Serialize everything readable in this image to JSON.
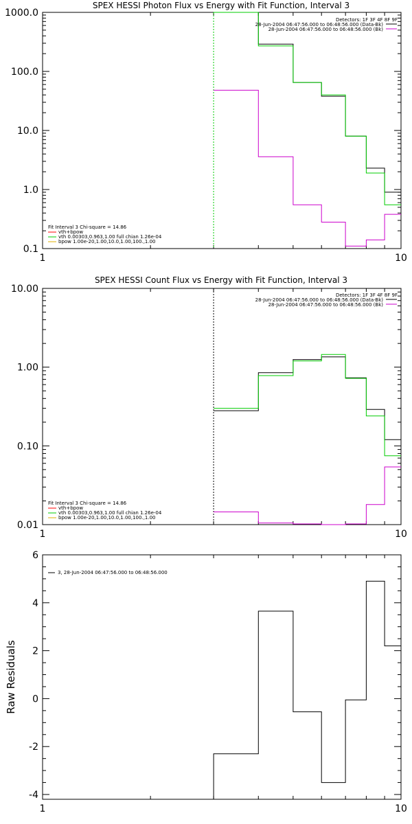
{
  "colors": {
    "data": "#000000",
    "background": "#cc00cc",
    "vth": "#00cc00",
    "fit_total": "#ff0000",
    "bpow": "#e0b000"
  },
  "chart_data": [
    {
      "type": "line",
      "title": "SPEX HESSI Photon Flux vs Energy with Fit Function, Interval 3",
      "xlabel": "",
      "ylabel": "",
      "xlim": [
        1,
        10
      ],
      "ylim": [
        0.1,
        1000
      ],
      "xscale": "log",
      "yscale": "log",
      "x_ticklabels": [
        "1",
        "10"
      ],
      "y_ticklabels": [
        "0.1",
        "1.0",
        "10.0",
        "100.0",
        "1000.0"
      ],
      "vline": 3,
      "legend_right": {
        "header": "Detectors: 1F 3F 4F 8F 9F",
        "entries": [
          "28-Jun-2004 06:47:56.000 to 06:48:56.000 (Data-Bk)",
          "28-Jun-2004 06:47:56.000 to 06:48:56.000 (Bk)"
        ]
      },
      "legend_left": {
        "header": "Fit Interval 3    Chi-square = 14.86",
        "entries": [
          "vth+bpow",
          "vth 0.00303,0.963,1.00   full chian 1.26e-04",
          "bpow 1.00e-20,1.00,10.0,1.00,100.,1.00"
        ]
      },
      "edges": [
        3,
        4,
        5,
        6,
        7,
        8,
        9,
        10
      ],
      "series": [
        {
          "name": "28-Jun-2004 06:47:56.000 to 06:48:56.000 (Data-Bk)",
          "values": [
            1000,
            290,
            65,
            38,
            8,
            2.3,
            0.9
          ]
        },
        {
          "name": "vth 0.00303,0.963,1.00   full chian 1.26e-04",
          "values": [
            1000,
            270,
            65,
            40,
            8,
            1.9,
            0.55
          ]
        },
        {
          "name": "28-Jun-2004 06:47:56.000 to 06:48:56.000 (Bk)",
          "values": [
            48,
            3.6,
            0.55,
            0.28,
            0.11,
            0.14,
            0.38
          ]
        }
      ]
    },
    {
      "type": "line",
      "title": "SPEX HESSI Count Flux vs Energy with Fit Function, Interval 3",
      "xlabel": "",
      "ylabel": "",
      "xlim": [
        1,
        10
      ],
      "ylim": [
        0.01,
        10
      ],
      "xscale": "log",
      "yscale": "log",
      "x_ticklabels": [
        "1",
        "10"
      ],
      "y_ticklabels": [
        "0.01",
        "0.10",
        "1.00",
        "10.00"
      ],
      "vline": 3,
      "legend_right": {
        "header": "Detectors: 1F 3F 4F 8F 9F",
        "entries": [
          "28-Jun-2004 06:47:56.000 to 06:48:56.000 (Data-Bk)",
          "28-Jun-2004 06:47:56.000 to 06:48:56.000 (Bk)"
        ]
      },
      "legend_left": {
        "header": "Fit Interval 3    Chi-square = 14.86",
        "entries": [
          "vth+bpow",
          "vth 0.00303,0.963,1.00   full chian 1.26e-04",
          "bpow 1.00e-20,1.00,10.0,1.00,100.,1.00"
        ]
      },
      "edges": [
        3,
        4,
        5,
        6,
        7,
        8,
        9,
        10
      ],
      "series": [
        {
          "name": "28-Jun-2004 06:47:56.000 to 06:48:56.000 (Data-Bk)",
          "values": [
            0.28,
            0.85,
            1.25,
            1.35,
            0.73,
            0.29,
            0.12
          ]
        },
        {
          "name": "vth 0.00303,0.963,1.00   full chian 1.26e-04",
          "values": [
            0.3,
            0.78,
            1.2,
            1.45,
            0.72,
            0.24,
            0.075
          ]
        },
        {
          "name": "28-Jun-2004 06:47:56.000 to 06:48:56.000 (Bk)",
          "values": [
            0.0145,
            0.0105,
            0.0102,
            0.0096,
            0.0102,
            0.018,
            0.054
          ]
        }
      ]
    },
    {
      "type": "line",
      "title": "",
      "xlabel": "",
      "ylabel": "Raw Residuals",
      "xlim": [
        1,
        10
      ],
      "ylim": [
        -4.2,
        6
      ],
      "xscale": "log",
      "yscale": "linear",
      "x_ticklabels": [
        "1",
        "10"
      ],
      "y_ticks": [
        -4,
        -2,
        0,
        2,
        4,
        6
      ],
      "y_ticklabels": [
        "-4",
        "-2",
        "0",
        "2",
        "4",
        "6"
      ],
      "legend": "3, 28-Jun-2004 06:47:56.000 to 06:48:56.000",
      "edges": [
        3,
        4,
        5,
        6,
        7,
        8,
        9,
        10
      ],
      "series": [
        {
          "name": "3, 28-Jun-2004 06:47:56.000 to 06:48:56.000",
          "values": [
            -2.3,
            3.65,
            -0.55,
            -3.5,
            -0.05,
            4.9,
            2.2
          ]
        }
      ]
    }
  ]
}
